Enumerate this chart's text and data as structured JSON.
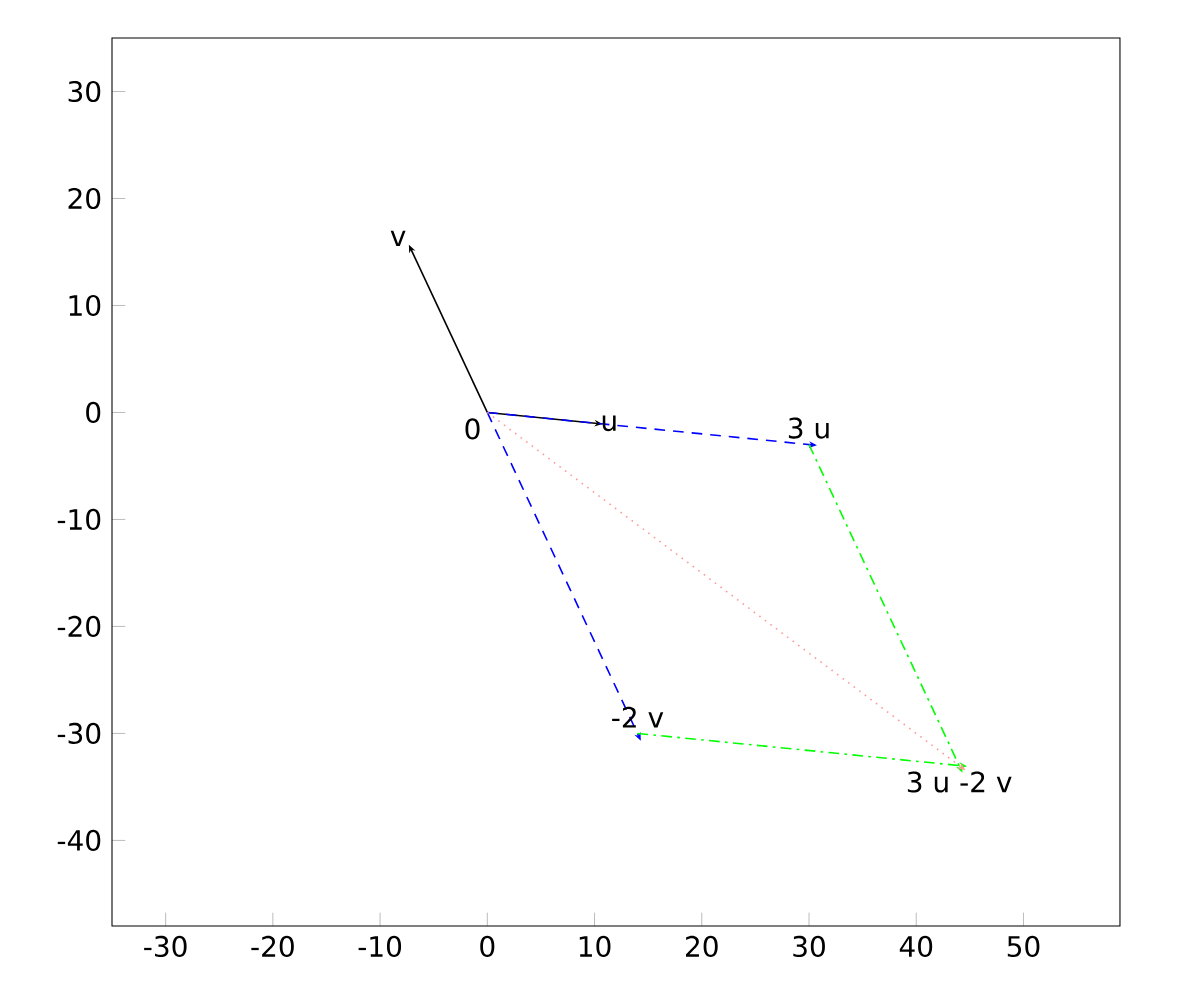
{
  "chart_data": {
    "type": "line",
    "xlim": [
      -35,
      59
    ],
    "ylim": [
      -48,
      35
    ],
    "xticks": [
      -30,
      -20,
      -10,
      0,
      10,
      20,
      30,
      40,
      50
    ],
    "yticks": [
      -40,
      -30,
      -20,
      -10,
      0,
      10,
      20,
      30
    ],
    "grid": false,
    "series": [
      {
        "x": [
          0,
          10
        ],
        "values": [
          0,
          -1
        ],
        "color": "#000000",
        "line_style": "solid"
      },
      {
        "x": [
          0,
          -7
        ],
        "values": [
          0,
          15
        ],
        "color": "#000000",
        "line_style": "solid"
      },
      {
        "x": [
          0,
          30
        ],
        "values": [
          0,
          -3
        ],
        "color": "#0000ff",
        "line_style": "dashed"
      },
      {
        "x": [
          0,
          14
        ],
        "values": [
          0,
          -30
        ],
        "color": "#0000ff",
        "line_style": "dashed"
      },
      {
        "x": [
          30,
          44
        ],
        "values": [
          -3,
          -33
        ],
        "color": "#00ff00",
        "line_style": "dashdot"
      },
      {
        "x": [
          14,
          44
        ],
        "values": [
          -30,
          -33
        ],
        "color": "#00ff00",
        "line_style": "dashdot"
      },
      {
        "x": [
          0,
          44
        ],
        "values": [
          0,
          -33
        ],
        "color": "#ff9999",
        "line_style": "dotted"
      }
    ],
    "annotations": [
      {
        "text": "0",
        "x": 0,
        "y": 0
      },
      {
        "text": "u",
        "x": 10,
        "y": -1
      },
      {
        "text": "v",
        "x": -7,
        "y": 15
      },
      {
        "text": "3 u",
        "x": 30,
        "y": -3
      },
      {
        "text": "-2 v",
        "x": 14,
        "y": -30
      },
      {
        "text": "3 u -2 v",
        "x": 44,
        "y": -33
      }
    ]
  }
}
